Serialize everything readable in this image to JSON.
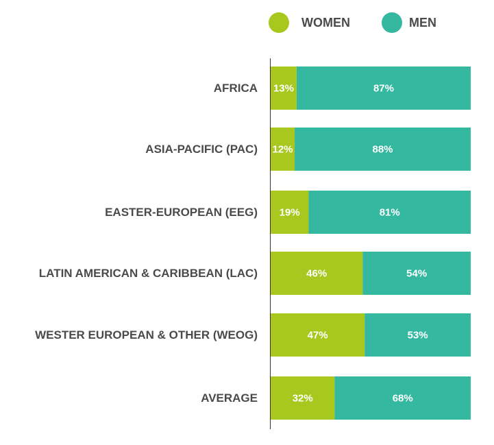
{
  "chart_data": {
    "type": "stacked-barh",
    "categories": [
      "AFRICA",
      "ASIA-PACIFIC (PAC)",
      "EASTER-EUROPEAN (EEG)",
      "LATIN AMERICAN & CARIBBEAN (LAC)",
      "WESTER EUROPEAN & OTHER (WEOG)",
      "AVERAGE"
    ],
    "series": [
      {
        "name": "WOMEN",
        "color": "#a9c81f",
        "values": [
          13,
          12,
          19,
          46,
          47,
          32
        ],
        "value_labels": [
          "13%",
          "12%",
          "19%",
          "46%",
          "47%",
          "32%"
        ]
      },
      {
        "name": "MEN",
        "color": "#34b89f",
        "values": [
          87,
          88,
          81,
          54,
          53,
          68
        ],
        "value_labels": [
          "87%",
          "88%",
          "81%",
          "54%",
          "53%",
          "68%"
        ]
      }
    ],
    "xlim": [
      0,
      100
    ],
    "legend": "top"
  }
}
